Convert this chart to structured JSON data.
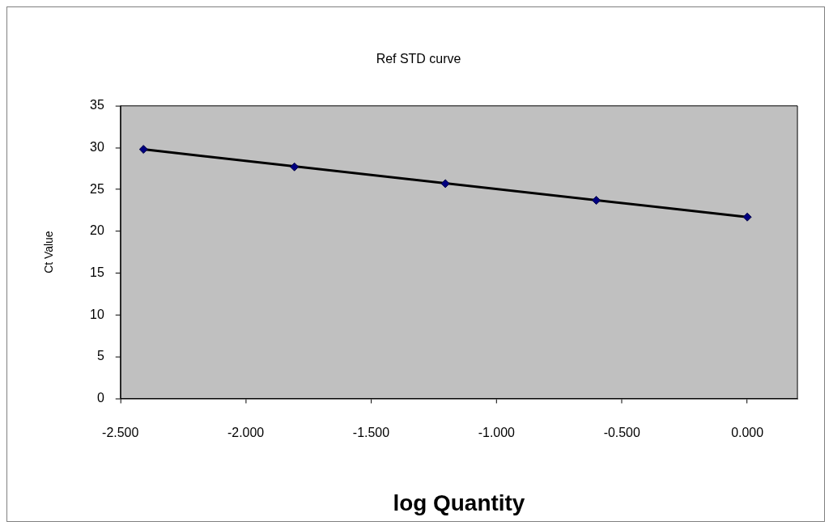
{
  "chart_data": {
    "type": "scatter",
    "title": "Ref STD curve",
    "xlabel": "log Quantity",
    "ylabel": "Ct Value",
    "series": [
      {
        "x": [
          -2.408,
          -1.806,
          -1.204,
          -0.602,
          0
        ],
        "values": [
          29.8,
          27.7,
          25.7,
          23.7,
          21.7
        ],
        "color": "#000080",
        "marker": "diamond"
      },
      {
        "type": "line",
        "x": [
          -2.408,
          0
        ],
        "values": [
          29.8,
          21.7
        ],
        "color": "#000000",
        "marker": "none"
      }
    ],
    "xlim": [
      -2.5,
      0.2
    ],
    "xticks": [
      {
        "value": -2.5,
        "label": "-2.500"
      },
      {
        "value": -2,
        "label": "-2.000"
      },
      {
        "value": -1.5,
        "label": "-1.500"
      },
      {
        "value": -1,
        "label": "-1.000"
      },
      {
        "value": -0.5,
        "label": "-0.500"
      },
      {
        "value": 0,
        "label": "0.000"
      }
    ],
    "ylim": [
      0,
      35
    ],
    "yticks": [
      0,
      5,
      10,
      15,
      20,
      25,
      30,
      35
    ],
    "grid": false,
    "legend": false
  }
}
